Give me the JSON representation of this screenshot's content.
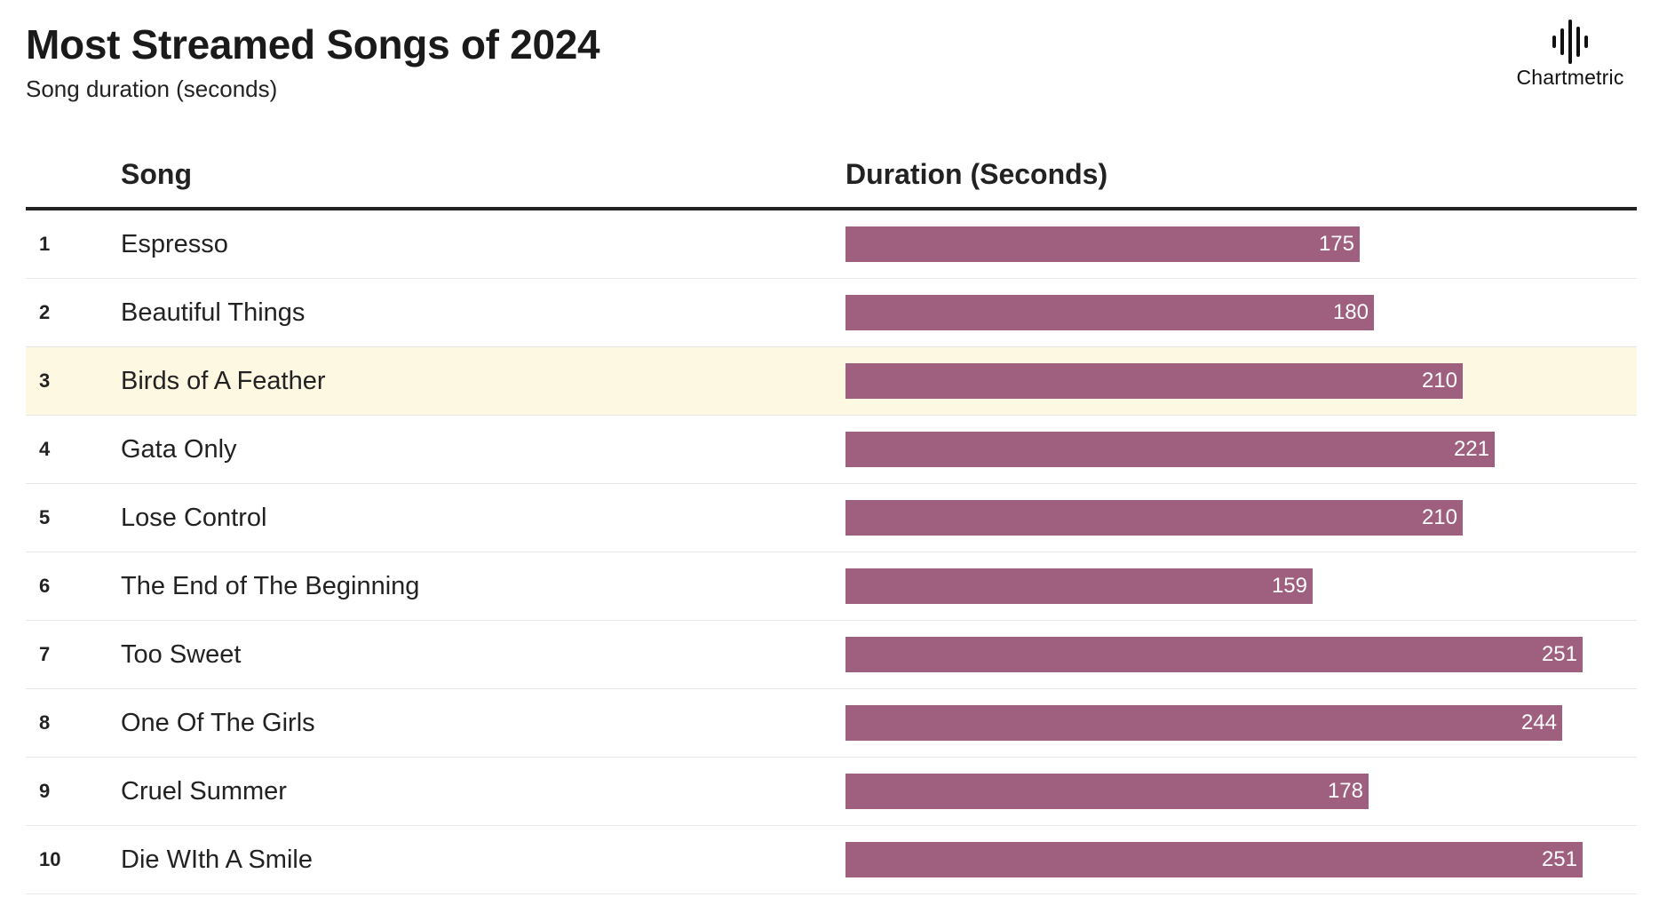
{
  "header": {
    "title": "Most Streamed Songs of 2024",
    "subtitle": "Song duration (seconds)"
  },
  "logo": {
    "text": "Chartmetric",
    "icon": "waveform-icon"
  },
  "table": {
    "columns": [
      "Song",
      "Duration (Seconds)"
    ],
    "highlight_rank": 3
  },
  "colors": {
    "bar": "#9f5f7e",
    "highlight": "#fdf8e1"
  },
  "chart_data": {
    "type": "bar",
    "orientation": "horizontal",
    "title": "Most Streamed Songs of 2024",
    "subtitle": "Song duration (seconds)",
    "xlabel": "Duration (Seconds)",
    "ylabel": "Song",
    "xlim": [
      0,
      260
    ],
    "grid": false,
    "ranks": [
      "1",
      "2",
      "3",
      "4",
      "5",
      "6",
      "7",
      "8",
      "9",
      "10"
    ],
    "categories": [
      "Espresso",
      "Beautiful Things",
      "Birds of A Feather",
      "Gata Only",
      "Lose Control",
      "The End of The Beginning",
      "Too Sweet",
      "One Of The Girls",
      "Cruel Summer",
      "Die WIth A Smile"
    ],
    "values": [
      175,
      180,
      210,
      221,
      210,
      159,
      251,
      244,
      178,
      251
    ]
  }
}
